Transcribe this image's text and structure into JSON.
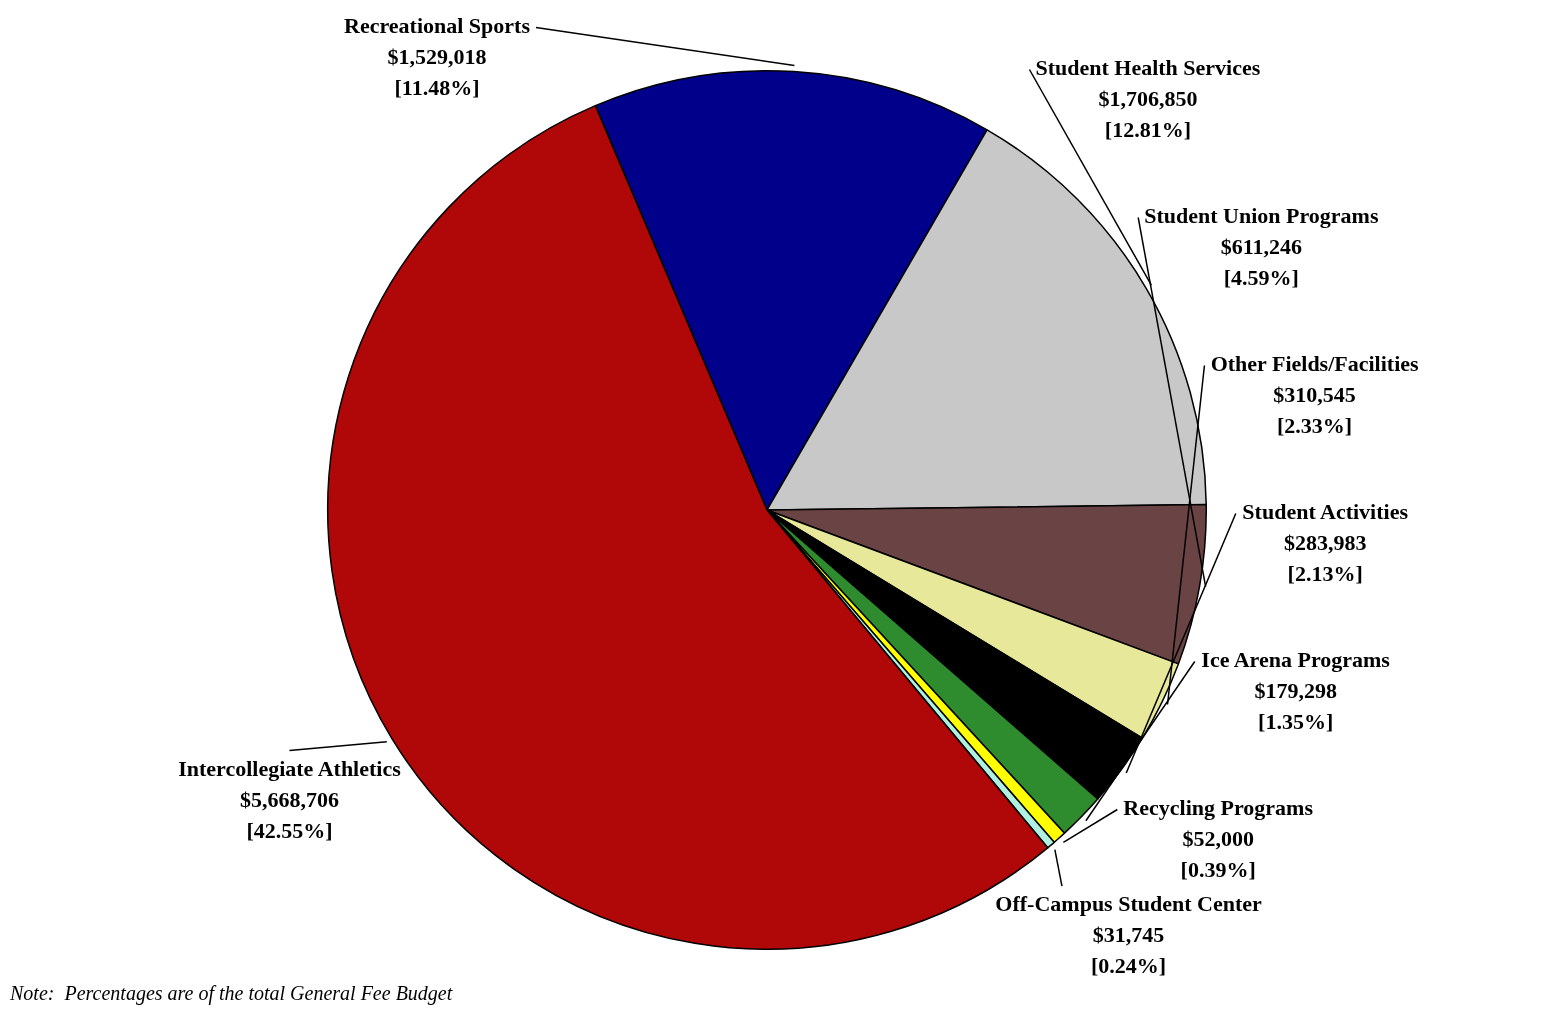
{
  "chart_data": {
    "type": "pie",
    "categories": [
      "Recreational Sports",
      "Student Health Services",
      "Student Union Programs",
      "Other Fields/Facilities",
      "Student Activities",
      "Ice Arena Programs",
      "Recycling Programs",
      "Off-Campus Student Center",
      "Intercollegiate Athletics"
    ],
    "values": [
      1529018,
      1706850,
      611246,
      310545,
      283983,
      179298,
      52000,
      31745,
      5668706
    ],
    "colors": [
      "#00008a",
      "#c8c8c8",
      "#6a4444",
      "#e8e89a",
      "#000000",
      "#2e8b2e",
      "#ffff00",
      "#b0f0e0",
      "#b00808"
    ],
    "value_labels": [
      "$1,529,018\n[11.48%]",
      "$1,706,850\n[12.81%]",
      "$611,246\n[4.59%]",
      "$310,545\n[2.33%]",
      "$283,983\n[2.13%]",
      "$179,298\n[1.35%]",
      "$52,000\n[0.39%]",
      "$31,745\n[0.24%]",
      "$5,668,706\n[42.55%]"
    ],
    "legend": false,
    "annotations": [
      "Note:  Percentages are of the total General Fee Budget"
    ]
  }
}
